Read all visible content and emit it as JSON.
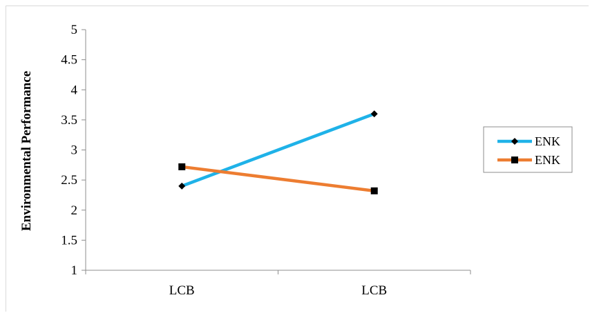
{
  "chart_data": {
    "type": "line",
    "categories": [
      "LCB",
      "LCB"
    ],
    "ylabel": "Environmental Performance",
    "xlabel": "",
    "ylim": [
      1,
      5
    ],
    "yticks": [
      "1",
      "1.5",
      "2",
      "2.5",
      "3",
      "3.5",
      "4",
      "4.5",
      "5"
    ],
    "grid": false,
    "legend_position": "right",
    "series": [
      {
        "name": "ENK",
        "values": [
          2.4,
          3.6
        ],
        "color": "#1fb2e8",
        "marker": "diamond"
      },
      {
        "name": "ENK",
        "values": [
          2.72,
          2.32
        ],
        "color": "#ed7d31",
        "marker": "square"
      }
    ]
  }
}
